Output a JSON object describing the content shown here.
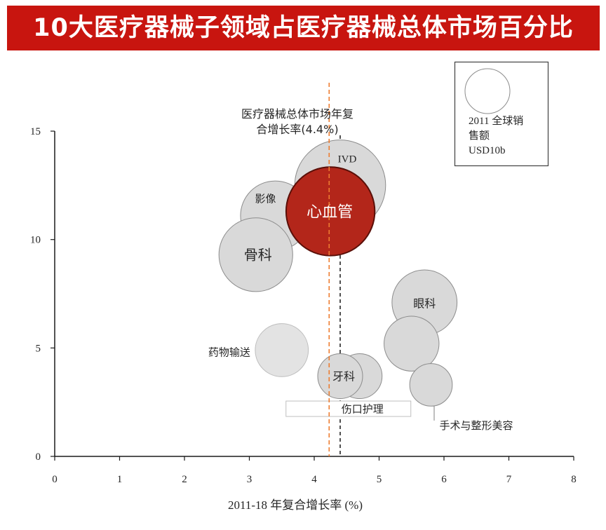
{
  "colors": {
    "banner": "#c8150f",
    "title_text": "#ffffff",
    "axis": "#1a1a1a",
    "bubble_stroke": "#8c8c8c",
    "legend_border": "#404040"
  },
  "chart_data": {
    "type": "scatter",
    "title": "10大医疗器械子领域占医疗器械总体市场百分比",
    "xlabel": "2011-18 年复合增长率 (%)",
    "xlim": [
      0,
      8
    ],
    "ylim": [
      0,
      15
    ],
    "xticks": [
      0,
      1,
      2,
      3,
      4,
      5,
      6,
      7,
      8
    ],
    "yticks": [
      0,
      5,
      10,
      15
    ],
    "grid": false,
    "points": [
      {
        "label": "IVD",
        "x": 4.4,
        "y": 12.5,
        "size": 41,
        "fill": "#d9d9d9",
        "stroke": "#8c8c8c"
      },
      {
        "label": "影像",
        "x": 3.4,
        "y": 11.1,
        "size": 24,
        "fill": "#d9d9d9",
        "stroke": "#8c8c8c"
      },
      {
        "label": "骨科",
        "x": 3.1,
        "y": 9.3,
        "size": 27,
        "fill": "#d9d9d9",
        "stroke": "#8c8c8c"
      },
      {
        "label": "心血管",
        "x": 4.25,
        "y": 11.3,
        "size": 39,
        "fill": "#b3261a",
        "stroke": "#5a0f08"
      },
      {
        "label": "眼科",
        "x": 5.7,
        "y": 7.1,
        "size": 21,
        "fill": "#d9d9d9",
        "stroke": "#8c8c8c"
      },
      {
        "label": "",
        "x": 5.5,
        "y": 5.2,
        "size": 15,
        "fill": "#d9d9d9",
        "stroke": "#8c8c8c"
      },
      {
        "label": "手术与整形美容",
        "x": 5.8,
        "y": 3.3,
        "size": 9,
        "fill": "#d9d9d9",
        "stroke": "#8c8c8c"
      },
      {
        "label": "药物输送",
        "x": 3.5,
        "y": 4.9,
        "size": 14,
        "fill": "#e3e3e3",
        "stroke": "#bdbdbd"
      },
      {
        "label": "伤口护理",
        "x": 4.7,
        "y": 3.7,
        "size": 10,
        "fill": "#d9d9d9",
        "stroke": "#8c8c8c"
      },
      {
        "label": "牙科",
        "x": 4.4,
        "y": 3.7,
        "size": 10,
        "fill": "#d9d9d9",
        "stroke": "#8c8c8c"
      }
    ],
    "size_legend": {
      "value": 10,
      "text_lines": [
        "2011 全球销",
        "售额",
        "USD10b"
      ],
      "placement": "top-right"
    },
    "reference_lines": [
      {
        "x": 4.4,
        "label_lines": [
          "医疗器械总体市场年复",
          "合增长率(4.4%)"
        ],
        "color": "#262626",
        "style": "dashed"
      },
      {
        "x": 4.23,
        "color": "#ed7d31",
        "style": "dashed"
      }
    ]
  }
}
